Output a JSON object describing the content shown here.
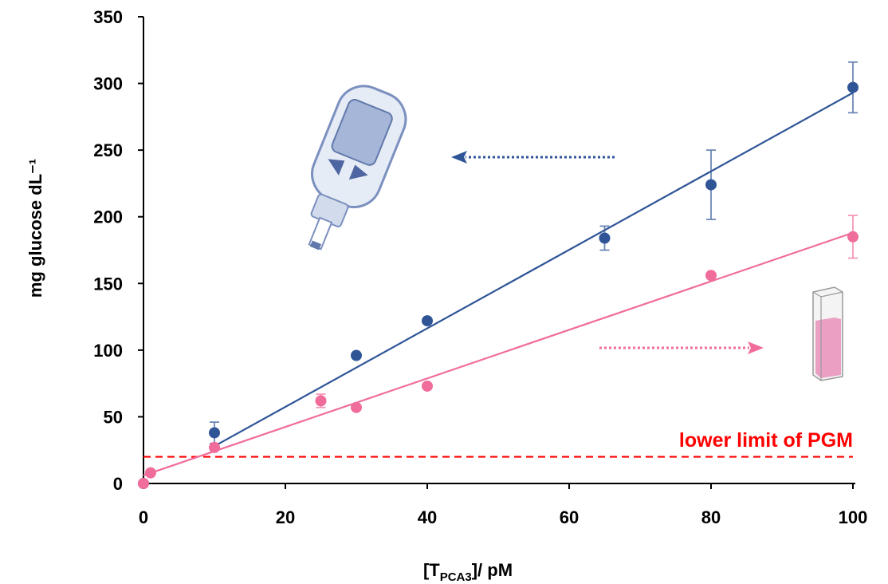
{
  "chart_data": {
    "type": "scatter",
    "xlabel_main": "[T",
    "xlabel_sub": "PCA3",
    "xlabel_tail": "]/ pM",
    "ylabel": "mg glucose dL⁻¹",
    "xlim": [
      0,
      100
    ],
    "ylim": [
      0,
      350
    ],
    "x_ticks": [
      "0",
      "20",
      "40",
      "60",
      "80",
      "100"
    ],
    "y_ticks": [
      "0",
      "50",
      "100",
      "150",
      "200",
      "250",
      "300",
      "350"
    ],
    "grid": false,
    "series": [
      {
        "color": "#2f5597",
        "points": [
          {
            "x": 0,
            "y": 0,
            "err": 0
          },
          {
            "x": 10,
            "y": 38,
            "err": 8
          },
          {
            "x": 30,
            "y": 96,
            "err": 0
          },
          {
            "x": 40,
            "y": 122,
            "err": 0
          },
          {
            "x": 65,
            "y": 184,
            "err": 9
          },
          {
            "x": 80,
            "y": 224,
            "err": 26
          },
          {
            "x": 100,
            "y": 297,
            "err": 19
          }
        ],
        "fit": {
          "x0": 10,
          "y0": 28,
          "x1": 100,
          "y1": 293
        }
      },
      {
        "color": "#f06c9b",
        "points": [
          {
            "x": 0,
            "y": 0,
            "err": 0
          },
          {
            "x": 1,
            "y": 8,
            "err": 0
          },
          {
            "x": 10,
            "y": 27,
            "err": 0
          },
          {
            "x": 25,
            "y": 62,
            "err": 5
          },
          {
            "x": 30,
            "y": 57,
            "err": 0
          },
          {
            "x": 40,
            "y": 73,
            "err": 0
          },
          {
            "x": 80,
            "y": 156,
            "err": 0
          },
          {
            "x": 100,
            "y": 185,
            "err": 16
          }
        ],
        "fit": {
          "x0": 0,
          "y0": 6,
          "x1": 100,
          "y1": 188
        }
      }
    ],
    "threshold": {
      "y": 20,
      "label": "lower limit of PGM",
      "color": "#ff0000"
    },
    "icons": [
      "glucose-meter-icon",
      "cuvette-icon"
    ]
  }
}
